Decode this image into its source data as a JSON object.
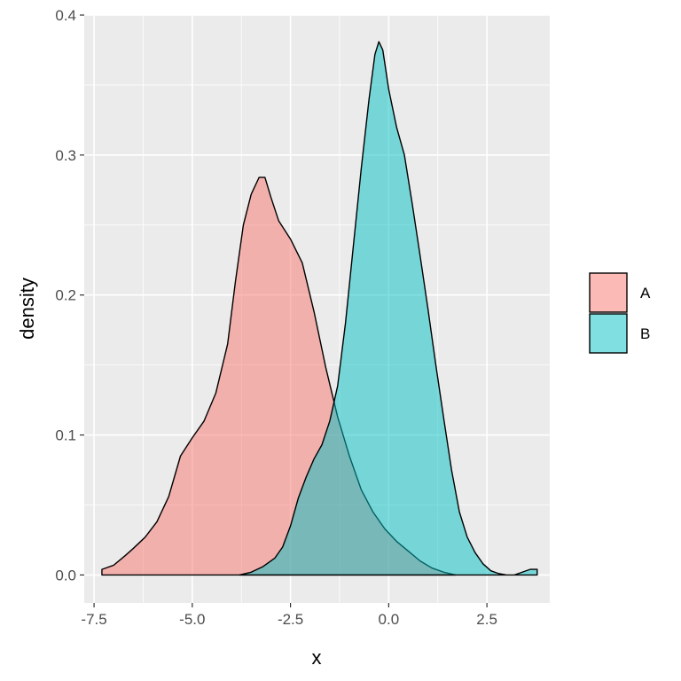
{
  "chart_data": {
    "type": "area",
    "title": "",
    "xlabel": "x",
    "ylabel": "density",
    "xlim": [
      -7.75,
      4.1
    ],
    "ylim": [
      -0.02,
      0.4
    ],
    "xticks": [
      -7.5,
      -5.0,
      -2.5,
      0.0,
      2.5
    ],
    "xtick_labels": [
      "-7.5",
      "-5.0",
      "-2.5",
      "0.0",
      "2.5"
    ],
    "yticks": [
      0.0,
      0.1,
      0.2,
      0.3,
      0.4
    ],
    "ytick_labels": [
      "0.0",
      "0.1",
      "0.2",
      "0.3",
      "0.4"
    ],
    "grid": true,
    "legend_position": "right",
    "series": [
      {
        "name": "A",
        "color": "#f8766d",
        "fill_opacity": 0.5,
        "x": [
          -7.3,
          -7.0,
          -6.7,
          -6.5,
          -6.2,
          -5.9,
          -5.6,
          -5.3,
          -5.0,
          -4.7,
          -4.4,
          -4.1,
          -3.9,
          -3.7,
          -3.5,
          -3.3,
          -3.15,
          -3.0,
          -2.8,
          -2.5,
          -2.2,
          -1.9,
          -1.6,
          -1.3,
          -1.0,
          -0.7,
          -0.4,
          -0.1,
          0.2,
          0.5,
          0.8,
          1.1,
          1.4,
          1.7
        ],
        "y": [
          0.004,
          0.007,
          0.014,
          0.019,
          0.027,
          0.038,
          0.056,
          0.085,
          0.098,
          0.11,
          0.13,
          0.165,
          0.21,
          0.25,
          0.272,
          0.284,
          0.284,
          0.27,
          0.253,
          0.24,
          0.223,
          0.188,
          0.148,
          0.113,
          0.085,
          0.061,
          0.045,
          0.033,
          0.024,
          0.017,
          0.01,
          0.005,
          0.002,
          0.0
        ]
      },
      {
        "name": "B",
        "color": "#00bfc4",
        "fill_opacity": 0.5,
        "x": [
          -3.8,
          -3.5,
          -3.2,
          -2.9,
          -2.7,
          -2.5,
          -2.3,
          -2.1,
          -1.9,
          -1.7,
          -1.5,
          -1.3,
          -1.1,
          -0.9,
          -0.7,
          -0.5,
          -0.35,
          -0.25,
          -0.15,
          0.0,
          0.2,
          0.4,
          0.6,
          0.8,
          1.0,
          1.2,
          1.4,
          1.6,
          1.8,
          2.0,
          2.2,
          2.4,
          2.6,
          2.8,
          3.0,
          3.2,
          3.4,
          3.6,
          3.78
        ],
        "y": [
          0.0,
          0.002,
          0.006,
          0.012,
          0.02,
          0.035,
          0.055,
          0.07,
          0.083,
          0.093,
          0.11,
          0.135,
          0.18,
          0.235,
          0.29,
          0.34,
          0.372,
          0.381,
          0.375,
          0.347,
          0.32,
          0.3,
          0.265,
          0.228,
          0.19,
          0.15,
          0.112,
          0.075,
          0.045,
          0.027,
          0.016,
          0.008,
          0.003,
          0.001,
          0.0,
          0.0,
          0.002,
          0.004,
          0.004
        ]
      }
    ]
  }
}
